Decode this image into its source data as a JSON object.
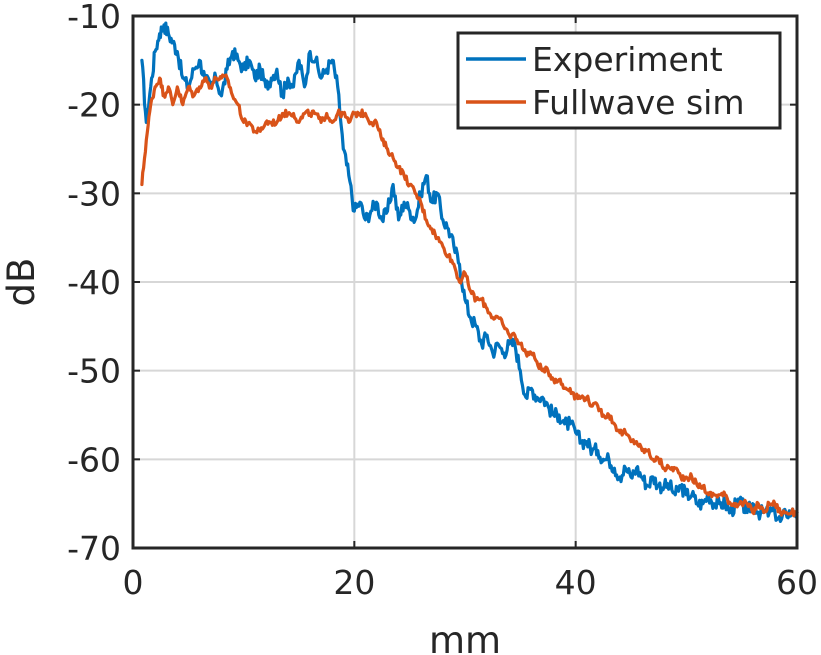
{
  "chart_data": {
    "type": "line",
    "title": "",
    "xlabel": "mm",
    "ylabel": "dB",
    "xlim": [
      0,
      60
    ],
    "ylim": [
      -70,
      -10
    ],
    "xticks": [
      0,
      20,
      40,
      60
    ],
    "yticks": [
      -70,
      -60,
      -50,
      -40,
      -30,
      -20,
      -10
    ],
    "xtick_labels": [
      "0",
      "20",
      "40",
      "60"
    ],
    "ytick_labels": [
      "-70",
      "-60",
      "-50",
      "-40",
      "-30",
      "-20",
      "-10"
    ],
    "grid": true,
    "legend_position": "top-right",
    "series": [
      {
        "name": "Experiment",
        "color": "#0072bd",
        "x": [
          0.8,
          1.2,
          1.6,
          2.0,
          2.4,
          2.8,
          3.2,
          3.6,
          4.0,
          4.5,
          5.0,
          5.5,
          6.0,
          6.5,
          7.0,
          7.5,
          8.0,
          8.5,
          9.0,
          9.5,
          10.0,
          10.5,
          11.0,
          11.5,
          12.0,
          12.5,
          13.0,
          13.5,
          14.0,
          14.5,
          15.0,
          15.5,
          16.0,
          16.5,
          17.0,
          17.5,
          18.0,
          18.5,
          19.0,
          19.5,
          20.0,
          20.5,
          21.0,
          21.5,
          22.0,
          22.5,
          23.0,
          23.5,
          24.0,
          24.5,
          25.0,
          25.5,
          26.0,
          26.5,
          27.0,
          27.5,
          28.0,
          28.5,
          29.0,
          29.5,
          30.0,
          30.5,
          31.0,
          31.5,
          32.0,
          32.5,
          33.0,
          33.5,
          34.0,
          34.5,
          35.0,
          35.5,
          36.0,
          36.5,
          37.0,
          37.5,
          38.0,
          38.5,
          39.0,
          39.5,
          40.0,
          40.5,
          41.0,
          41.5,
          42.0,
          42.5,
          43.0,
          43.5,
          44.0,
          44.5,
          45.0,
          45.5,
          46.0,
          46.5,
          47.0,
          47.5,
          48.0,
          48.5,
          49.0,
          49.5,
          50.0,
          50.5,
          51.0,
          51.5,
          52.0,
          52.5,
          53.0,
          53.5,
          54.0,
          54.5,
          55.0,
          55.5,
          56.0,
          56.5,
          57.0,
          57.5,
          58.0,
          58.5,
          59.0,
          59.5,
          60.0
        ],
        "y": [
          -15,
          -22,
          -18,
          -14,
          -12,
          -11,
          -12,
          -13,
          -14,
          -17,
          -18,
          -16,
          -15,
          -17,
          -18,
          -17,
          -19,
          -16,
          -14,
          -15,
          -16,
          -15,
          -17,
          -16,
          -18,
          -17,
          -16,
          -19,
          -17,
          -18,
          -15,
          -18,
          -14,
          -15,
          -17,
          -16,
          -15,
          -18,
          -25,
          -28,
          -32,
          -31,
          -33,
          -32,
          -31,
          -33,
          -32,
          -29,
          -33,
          -31,
          -32,
          -33,
          -30,
          -28,
          -31,
          -30,
          -33,
          -34,
          -36,
          -38,
          -42,
          -44,
          -45,
          -47,
          -46,
          -48,
          -47,
          -48,
          -47,
          -47,
          -50,
          -53,
          -52,
          -53,
          -53,
          -54,
          -55,
          -55,
          -56,
          -56,
          -57,
          -58,
          -58,
          -59,
          -59,
          -60,
          -60,
          -61,
          -62,
          -61,
          -62,
          -61,
          -62,
          -63,
          -62,
          -63,
          -63,
          -63,
          -64,
          -63,
          -64,
          -64,
          -65,
          -65,
          -64,
          -65,
          -65,
          -65,
          -66,
          -65,
          -65,
          -66,
          -65,
          -66,
          -66,
          -66,
          -66,
          -67,
          -66,
          -66,
          -66
        ]
      },
      {
        "name": "Fullwave sim",
        "color": "#d95319",
        "x": [
          0.8,
          1.2,
          1.6,
          2.0,
          2.4,
          2.8,
          3.2,
          3.6,
          4.0,
          4.5,
          5.0,
          5.5,
          6.0,
          6.5,
          7.0,
          7.5,
          8.0,
          8.5,
          9.0,
          9.5,
          10.0,
          10.5,
          11.0,
          11.5,
          12.0,
          12.5,
          13.0,
          13.5,
          14.0,
          14.5,
          15.0,
          15.5,
          16.0,
          16.5,
          17.0,
          17.5,
          18.0,
          18.5,
          19.0,
          19.5,
          20.0,
          20.5,
          21.0,
          21.5,
          22.0,
          22.5,
          23.0,
          23.5,
          24.0,
          24.5,
          25.0,
          25.5,
          26.0,
          26.5,
          27.0,
          27.5,
          28.0,
          28.5,
          29.0,
          29.5,
          30.0,
          30.5,
          31.0,
          31.5,
          32.0,
          32.5,
          33.0,
          33.5,
          34.0,
          34.5,
          35.0,
          35.5,
          36.0,
          36.5,
          37.0,
          37.5,
          38.0,
          38.5,
          39.0,
          39.5,
          40.0,
          40.5,
          41.0,
          41.5,
          42.0,
          42.5,
          43.0,
          43.5,
          44.0,
          44.5,
          45.0,
          45.5,
          46.0,
          46.5,
          47.0,
          47.5,
          48.0,
          48.5,
          49.0,
          49.5,
          50.0,
          50.5,
          51.0,
          51.5,
          52.0,
          52.5,
          53.0,
          53.5,
          54.0,
          54.5,
          55.0,
          55.5,
          56.0,
          56.5,
          57.0,
          57.5,
          58.0,
          58.5,
          59.0,
          59.5,
          60.0
        ],
        "y": [
          -29,
          -24,
          -20,
          -18,
          -17,
          -19,
          -18,
          -20,
          -18,
          -20,
          -18,
          -19,
          -18,
          -17,
          -18,
          -17,
          -17,
          -17,
          -19,
          -20,
          -22,
          -22,
          -23,
          -23,
          -22,
          -22,
          -22,
          -21,
          -21,
          -21,
          -22,
          -21,
          -21,
          -21,
          -22,
          -21,
          -22,
          -21,
          -21,
          -22,
          -21,
          -21,
          -21,
          -22,
          -22,
          -24,
          -25,
          -26,
          -27,
          -28,
          -29,
          -30,
          -31,
          -33,
          -34,
          -35,
          -36,
          -37,
          -38,
          -40,
          -39,
          -41,
          -42,
          -42,
          -43,
          -44,
          -44,
          -45,
          -46,
          -46,
          -47,
          -48,
          -48,
          -49,
          -50,
          -50,
          -51,
          -51,
          -52,
          -52,
          -53,
          -53,
          -53,
          -54,
          -54,
          -55,
          -55,
          -56,
          -57,
          -57,
          -58,
          -58,
          -59,
          -59,
          -60,
          -60,
          -61,
          -61,
          -61,
          -62,
          -62,
          -62,
          -63,
          -63,
          -64,
          -64,
          -64,
          -64,
          -65,
          -65,
          -65,
          -65,
          -66,
          -65,
          -66,
          -65,
          -65,
          -66,
          -66,
          -66,
          -66
        ]
      }
    ]
  }
}
